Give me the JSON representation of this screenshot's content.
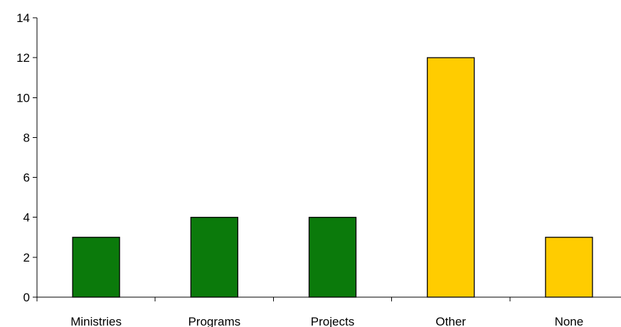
{
  "chart_data": {
    "type": "bar",
    "title": "",
    "xlabel": "",
    "ylabel": "",
    "categories": [
      "Ministries",
      "Programs",
      "Projects",
      "Other",
      "None"
    ],
    "values": [
      3,
      4,
      4,
      12,
      3
    ],
    "bar_colors": [
      "#0b7a0b",
      "#0b7a0b",
      "#0b7a0b",
      "#ffcc00",
      "#ffcc00"
    ],
    "ylim": [
      0,
      14
    ],
    "yticks": [
      0,
      2,
      4,
      6,
      8,
      10,
      12,
      14
    ],
    "grid": false,
    "legend": "none"
  }
}
